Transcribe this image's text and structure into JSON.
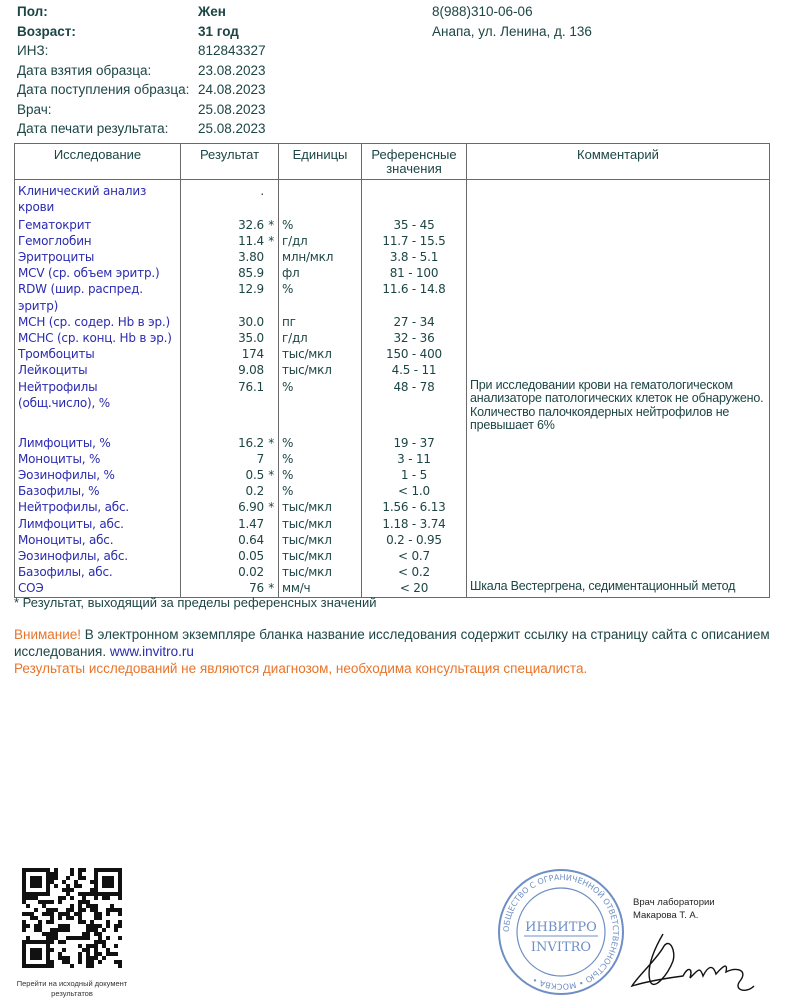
{
  "patient": {
    "rows": [
      {
        "label": "Пол:",
        "value": "Жен"
      },
      {
        "label": "Возраст:",
        "value": "31 год"
      },
      {
        "label": "ИНЗ:",
        "value": "812843327"
      },
      {
        "label": "Дата взятия образца:",
        "value": "23.08.2023"
      },
      {
        "label": "Дата поступления образца:",
        "value": "24.08.2023"
      },
      {
        "label": "Врач:",
        "value": "25.08.2023"
      },
      {
        "label": "Дата печати результата:",
        "value": "25.08.2023"
      }
    ],
    "phone": "8(988)310-06-06",
    "address": "Анапа, ул. Ленина, д. 136"
  },
  "table": {
    "headers": [
      "Исследование",
      "Результат",
      "Единицы",
      "Референсные значения",
      "Комментарий"
    ],
    "rows": [
      {
        "name": "Клинический анализ крови",
        "result": ".",
        "flag": "",
        "unit": "",
        "ref": "",
        "comment": ""
      },
      {
        "name": "Гематокрит",
        "result": "32.6",
        "flag": "*",
        "unit": "%",
        "ref": "35 - 45",
        "comment": ""
      },
      {
        "name": "Гемоглобин",
        "result": "11.4",
        "flag": "*",
        "unit": "г/дл",
        "ref": "11.7 - 15.5",
        "comment": ""
      },
      {
        "name": "Эритроциты",
        "result": "3.80",
        "flag": "",
        "unit": "млн/мкл",
        "ref": "3.8 - 5.1",
        "comment": ""
      },
      {
        "name": "MCV (ср. объем эритр.)",
        "result": "85.9",
        "flag": "",
        "unit": "фл",
        "ref": "81 - 100",
        "comment": ""
      },
      {
        "name": "RDW (шир. распред. эритр)",
        "result": "12.9",
        "flag": "",
        "unit": "%",
        "ref": "11.6 - 14.8",
        "comment": ""
      },
      {
        "name": "MCH (ср. содер. Hb в эр.)",
        "result": "30.0",
        "flag": "",
        "unit": "пг",
        "ref": "27 - 34",
        "comment": ""
      },
      {
        "name": "MCHC (ср. конц. Hb в эр.)",
        "result": "35.0",
        "flag": "",
        "unit": "г/дл",
        "ref": "32 - 36",
        "comment": ""
      },
      {
        "name": "Тромбоциты",
        "result": "174",
        "flag": "",
        "unit": "тыс/мкл",
        "ref": "150 - 400",
        "comment": ""
      },
      {
        "name": "Лейкоциты",
        "result": "9.08",
        "flag": "",
        "unit": "тыс/мкл",
        "ref": "4.5 - 11",
        "comment": ""
      },
      {
        "name": "Нейтрофилы (общ.число), %",
        "result": "76.1",
        "flag": "",
        "unit": "%",
        "ref": "48 - 78",
        "comment": "При исследовании крови на гематологическом анализаторе патологических клеток не обнаружено. Количество палочкоядерных нейтрофилов не превышает 6%"
      },
      {
        "name": "Лимфоциты, %",
        "result": "16.2",
        "flag": "*",
        "unit": "%",
        "ref": "19 - 37",
        "comment": ""
      },
      {
        "name": "Моноциты, %",
        "result": "7",
        "flag": "",
        "unit": "%",
        "ref": "3 - 11",
        "comment": ""
      },
      {
        "name": "Эозинофилы, %",
        "result": "0.5",
        "flag": "*",
        "unit": "%",
        "ref": "1 - 5",
        "comment": ""
      },
      {
        "name": "Базофилы, %",
        "result": "0.2",
        "flag": "",
        "unit": "%",
        "ref": "< 1.0",
        "comment": ""
      },
      {
        "name": "Нейтрофилы, абс.",
        "result": "6.90",
        "flag": "*",
        "unit": "тыс/мкл",
        "ref": "1.56 - 6.13",
        "comment": ""
      },
      {
        "name": "Лимфоциты, абс.",
        "result": "1.47",
        "flag": "",
        "unit": "тыс/мкл",
        "ref": "1.18 - 3.74",
        "comment": ""
      },
      {
        "name": "Моноциты, абс.",
        "result": "0.64",
        "flag": "",
        "unit": "тыс/мкл",
        "ref": "0.2 - 0.95",
        "comment": ""
      },
      {
        "name": "Эозинофилы, абс.",
        "result": "0.05",
        "flag": "",
        "unit": "тыс/мкл",
        "ref": "< 0.7",
        "comment": ""
      },
      {
        "name": "Базофилы, абс.",
        "result": "0.02",
        "flag": "",
        "unit": "тыс/мкл",
        "ref": "< 0.2",
        "comment": ""
      },
      {
        "name": "СОЭ",
        "result": "76",
        "flag": "*",
        "unit": "мм/ч",
        "ref": "< 20",
        "comment": "Шкала Вестергрена, седиментационный метод"
      }
    ]
  },
  "footnote": "* Результат, выходящий за пределы референсных значений",
  "warning": {
    "prefix": "Внимание!",
    "text": " В электронном экземпляре бланка название исследования содержит ссылку на страницу сайта с описанием исследования. ",
    "link": "www.invitro.ru",
    "disclaimer": "Результаты исследований не являются диагнозом, необходима консультация специалиста."
  },
  "qr_caption": "Перейти на исходный документ результатов",
  "stamp": {
    "text_ru": "ИНВИТРО",
    "text_en": "INVITRO",
    "ring": "ОБЩЕСТВО С ОГРАНИЧЕННОЙ ОТВЕТСТВЕННОСТЬЮ • Г. Р. № 659 691 • МОСКВА •",
    "inner": "Независимая лаборатория • Independent Laboratory"
  },
  "signature": {
    "title": "Врач лаборатории",
    "name": "Макарова Т. А."
  },
  "colors": {
    "accent_orange": "#e8742a",
    "study_blue": "#2b2bb0",
    "text_teal": "#1d4545"
  }
}
